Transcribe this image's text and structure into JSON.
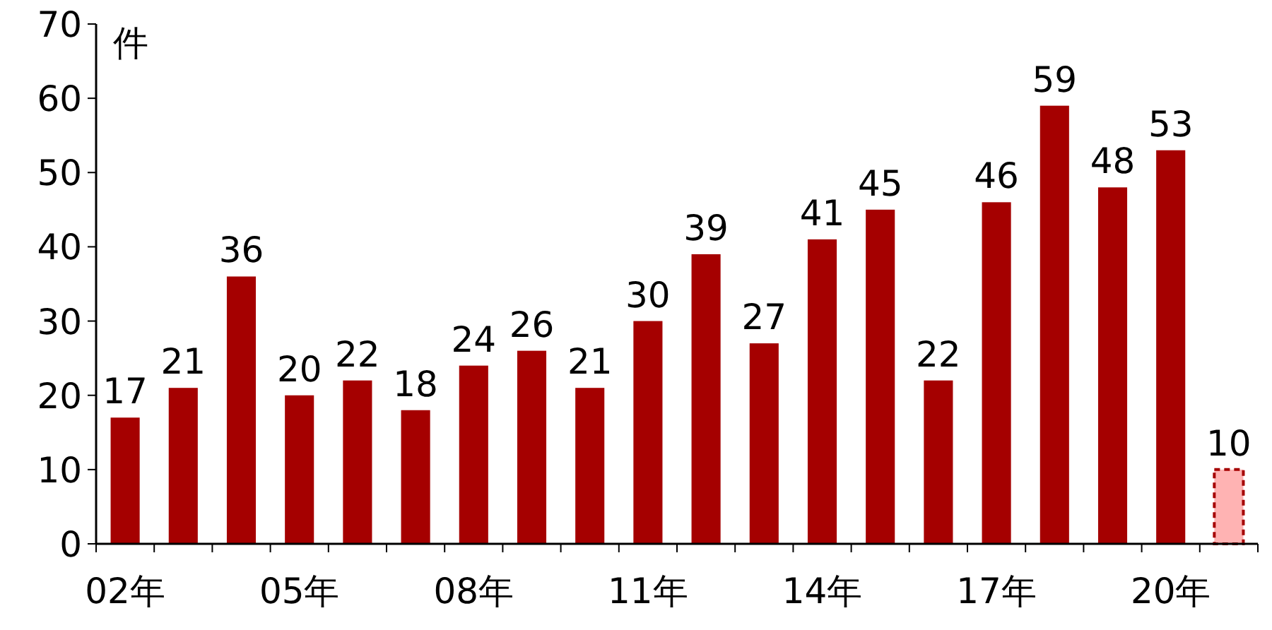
{
  "chart_data": {
    "type": "bar",
    "ylabel": "件",
    "categories": [
      "02年",
      null,
      null,
      "05年",
      null,
      null,
      "08年",
      null,
      null,
      "11年",
      null,
      null,
      "14年",
      null,
      null,
      "17年",
      null,
      null,
      "20年",
      null
    ],
    "values": [
      17,
      21,
      36,
      20,
      22,
      18,
      24,
      26,
      21,
      30,
      39,
      27,
      41,
      45,
      22,
      46,
      59,
      48,
      53,
      10
    ],
    "colors": [
      "#a50000",
      "#a50000",
      "#a50000",
      "#a50000",
      "#a50000",
      "#a50000",
      "#a50000",
      "#a50000",
      "#a50000",
      "#a50000",
      "#a50000",
      "#a50000",
      "#a50000",
      "#a50000",
      "#a50000",
      "#a50000",
      "#a50000",
      "#a50000",
      "#a50000",
      "#ffb3b3"
    ],
    "ylim": [
      0,
      70
    ],
    "yticks": [
      0,
      10,
      20,
      30,
      40,
      50,
      60,
      70
    ],
    "data_labels": true,
    "grid": false
  }
}
